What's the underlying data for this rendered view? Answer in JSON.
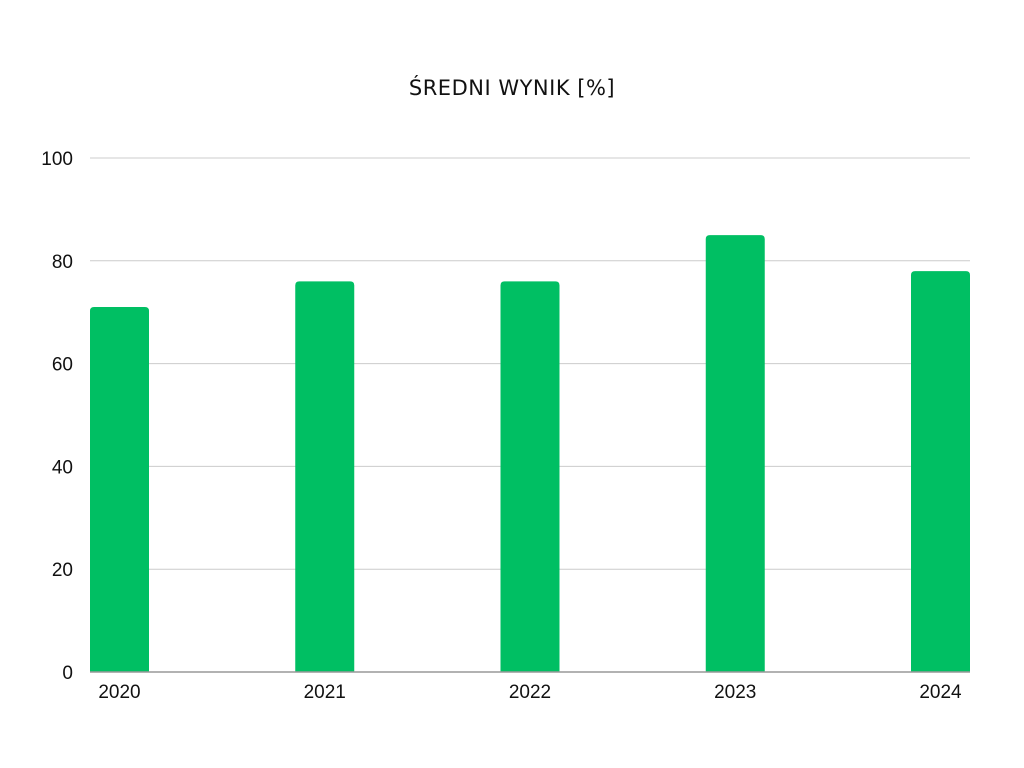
{
  "chart_data": {
    "type": "bar",
    "title": "ŚREDNI WYNIK [%]",
    "categories": [
      "2020",
      "2021",
      "2022",
      "2023",
      "2024"
    ],
    "values": [
      71,
      76,
      76,
      85,
      78
    ],
    "xlabel": "",
    "ylabel": "",
    "ylim": [
      0,
      100
    ],
    "yticks": [
      0,
      20,
      40,
      60,
      80,
      100
    ],
    "grid": true,
    "legend": "none",
    "bar_color": "#00BF63",
    "grid_color": "#CCCCCC",
    "axis_color": "#999999"
  }
}
